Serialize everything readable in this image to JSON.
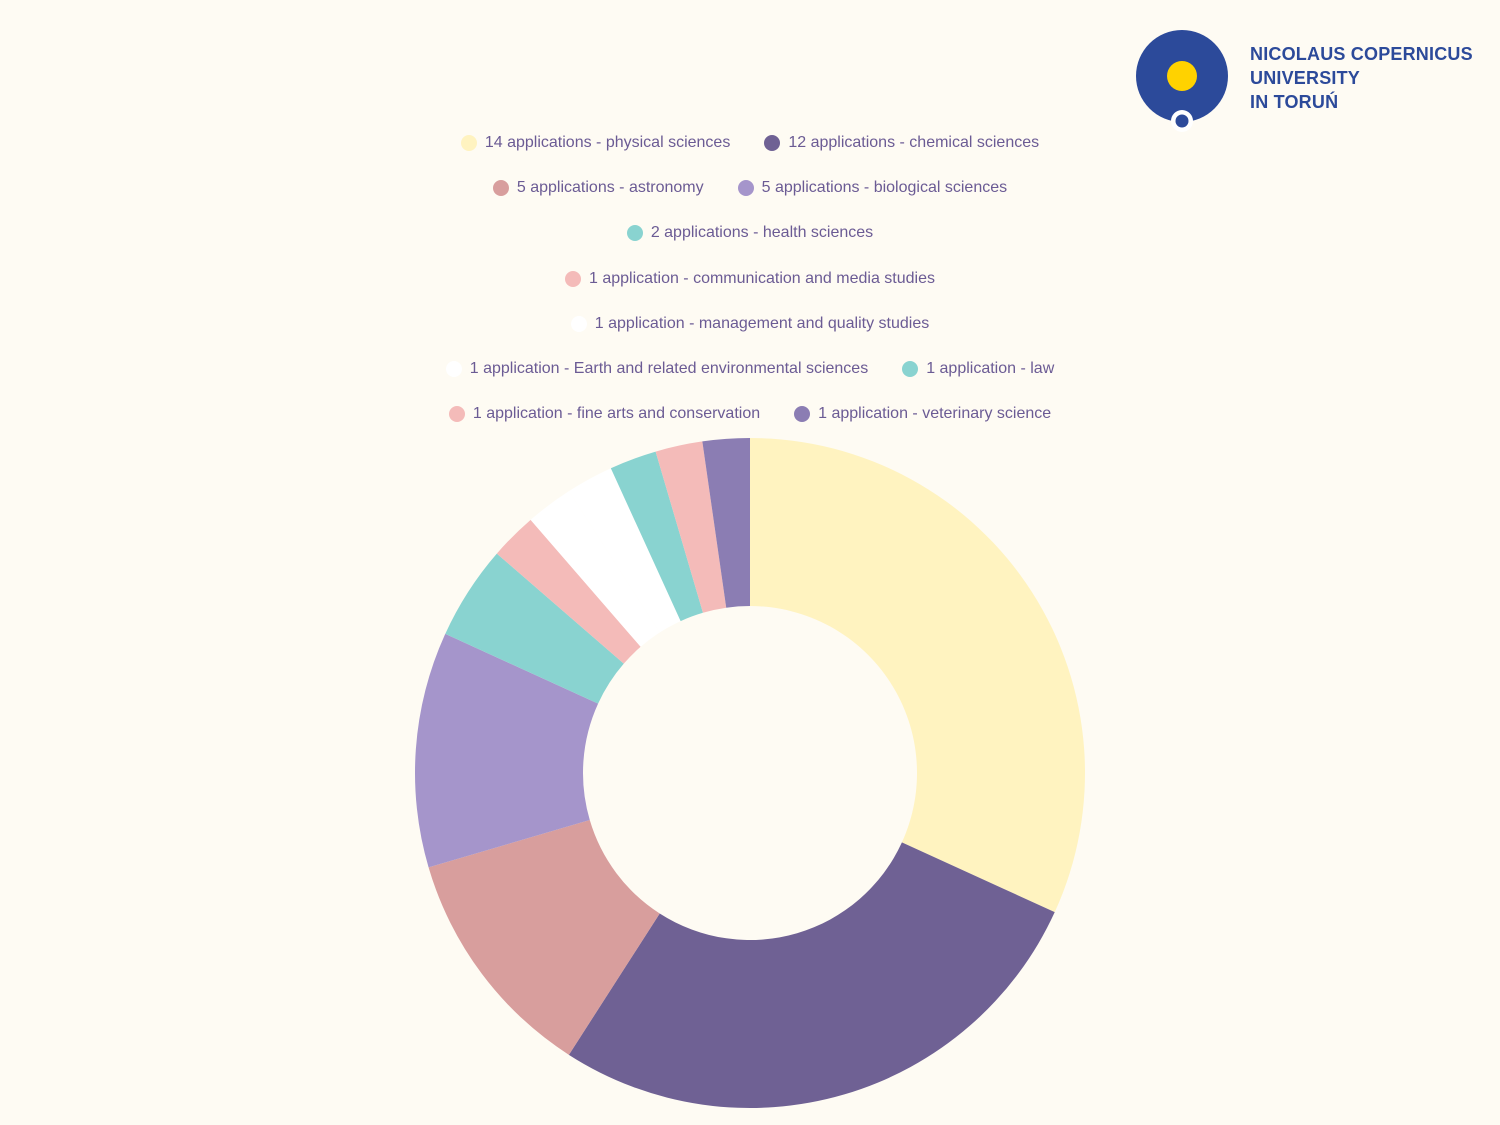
{
  "logo": {
    "lines": [
      "NICOLAUS COPERNICUS",
      "UNIVERSITY",
      "IN TORUŃ"
    ],
    "colors": {
      "disc": "#2c4a9a",
      "sun": "#ffd200"
    }
  },
  "chart_data": {
    "type": "pie",
    "subtype": "donut",
    "legend_position": "top",
    "categories": [
      "physical sciences",
      "chemical sciences",
      "astronomy",
      "biological sciences",
      "health sciences",
      "communication and media studies",
      "management and quality studies",
      "Earth and related environmental sciences",
      "law",
      "fine arts and conservation",
      "veterinary science"
    ],
    "values": [
      14,
      12,
      5,
      5,
      2,
      1,
      1,
      1,
      1,
      1,
      1
    ],
    "legend_labels": [
      "14 applications - physical sciences",
      "12 applications - chemical sciences",
      "5 applications - astronomy",
      "5 applications - biological sciences",
      "2 applications - health sciences",
      "1 application - communication and media studies",
      "1 application - management and quality studies",
      "1 application - Earth and related environmental sciences",
      "1 application - law",
      "1 application - fine arts and conservation",
      "1 application - veterinary science"
    ],
    "colors": [
      "#fff3c0",
      "#6f6194",
      "#d89e9d",
      "#a595cb",
      "#89d3d0",
      "#f4bbb9",
      "#ffffff",
      "#ffffff",
      "#89d3d0",
      "#f4bbb9",
      "#8b7db3"
    ]
  }
}
